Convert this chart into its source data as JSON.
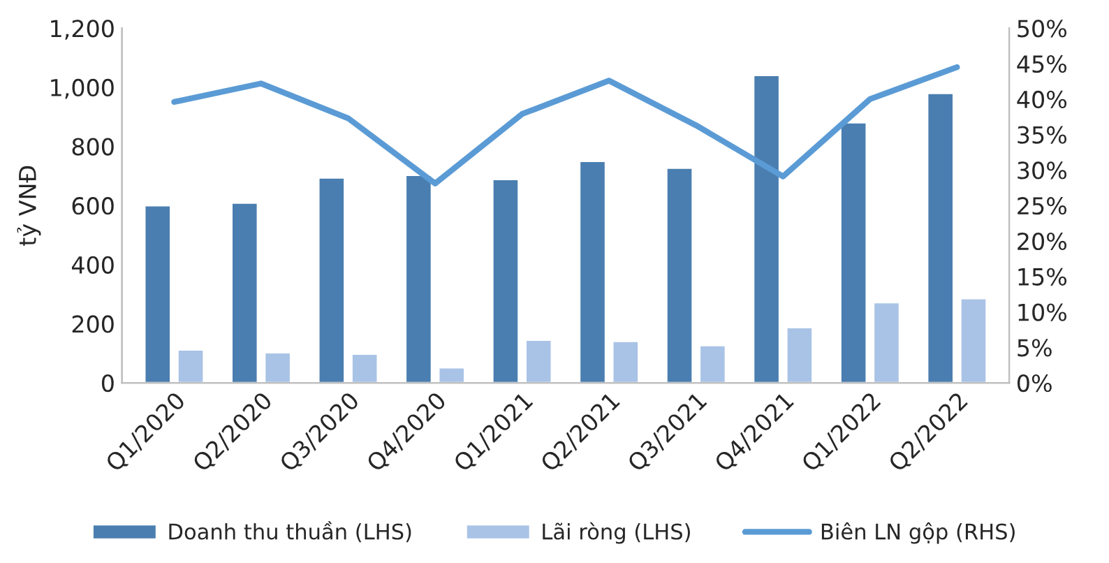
{
  "chart_data": {
    "type": "bar",
    "ylabel": "tỷ VNĐ",
    "categories": [
      "Q1/2020",
      "Q2/2020",
      "Q3/2020",
      "Q4/2020",
      "Q1/2021",
      "Q2/2021",
      "Q3/2021",
      "Q4/2021",
      "Q1/2022",
      "Q2/2022"
    ],
    "series": [
      {
        "name": "Doanh thu thuần (LHS)",
        "color": "#4a7eb0",
        "values": [
          600,
          609,
          694,
          703,
          689,
          750,
          727,
          1041,
          881,
          980
        ]
      },
      {
        "name": "Lãi ròng (LHS)",
        "color": "#a9c3e6",
        "values": [
          112,
          103,
          98,
          52,
          145,
          141,
          127,
          188,
          272,
          286
        ]
      },
      {
        "name": "Biên LN gộp (RHS)",
        "type": "line",
        "axis": "y2",
        "color": "#5b9bd5",
        "values": [
          39.6,
          42.2,
          37.3,
          28.1,
          37.9,
          42.6,
          36.3,
          29.1,
          40.0,
          44.5
        ]
      }
    ],
    "ylim": [
      0,
      1200
    ],
    "yticks": [
      0,
      200,
      400,
      600,
      800,
      {
        "value": 1000,
        "label": "1,000"
      },
      {
        "value": 1200,
        "label": "1,200"
      }
    ],
    "y2lim": [
      0,
      50
    ],
    "y2ticks": [
      {
        "value": 0,
        "label": "0%"
      },
      {
        "value": 5,
        "label": "5%"
      },
      {
        "value": 10,
        "label": "10%"
      },
      {
        "value": 15,
        "label": "15%"
      },
      {
        "value": 20,
        "label": "20%"
      },
      {
        "value": 25,
        "label": "25%"
      },
      {
        "value": 30,
        "label": "30%"
      },
      {
        "value": 35,
        "label": "35%"
      },
      {
        "value": 40,
        "label": "40%"
      },
      {
        "value": 45,
        "label": "45%"
      },
      {
        "value": 50,
        "label": "50%"
      }
    ],
    "grid": false,
    "legend": "bottom",
    "marker": "none",
    "line_style": "solid"
  }
}
